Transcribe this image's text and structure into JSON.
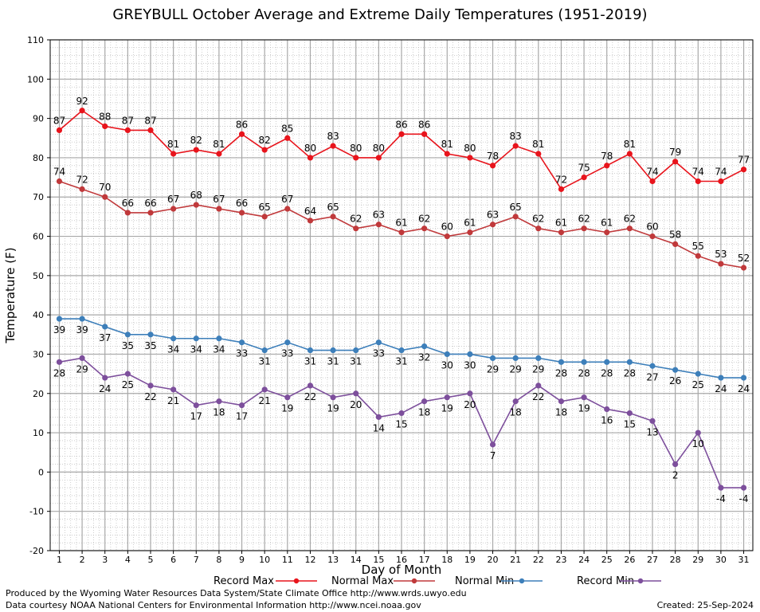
{
  "page": {
    "title": "GREYBULL October Average and Extreme Daily Temperatures (1951-2019)",
    "produced_by": "Produced by the Wyoming Water Resources Data System/State Climate Office http://www.wrds.uwyo.edu",
    "courtesy": "Data courtesy NOAA National Centers for Environmental Information http://www.ncei.noaa.gov",
    "created": "Created:  25-Sep-2024"
  },
  "chart_data": {
    "type": "line",
    "title": "GREYBULL October Average and Extreme Daily Temperatures (1951-2019)",
    "xlabel": "Day of Month",
    "ylabel": "Temperature (F)",
    "xlim": [
      0.6,
      31.4
    ],
    "ylim": [
      -20,
      110
    ],
    "x": [
      1,
      2,
      3,
      4,
      5,
      6,
      7,
      8,
      9,
      10,
      11,
      12,
      13,
      14,
      15,
      16,
      17,
      18,
      19,
      20,
      21,
      22,
      23,
      24,
      25,
      26,
      27,
      28,
      29,
      30,
      31
    ],
    "yticks": [
      -20,
      -10,
      0,
      10,
      20,
      30,
      40,
      50,
      60,
      70,
      80,
      90,
      100,
      110
    ],
    "grid": true,
    "legend_position": "bottom",
    "series": [
      {
        "name": "Record Max",
        "color": "#e8141c",
        "label_position": "above",
        "values": [
          87,
          92,
          88,
          87,
          87,
          81,
          82,
          81,
          86,
          82,
          85,
          80,
          83,
          80,
          80,
          86,
          86,
          81,
          80,
          78,
          83,
          81,
          72,
          75,
          78,
          81,
          74,
          79,
          74,
          74,
          77
        ]
      },
      {
        "name": "Normal Max",
        "color": "#c0393b",
        "label_position": "above",
        "values": [
          74,
          72,
          70,
          66,
          66,
          67,
          68,
          67,
          66,
          65,
          67,
          64,
          65,
          62,
          63,
          61,
          62,
          60,
          61,
          63,
          65,
          62,
          61,
          62,
          61,
          62,
          60,
          58,
          55,
          53,
          52
        ]
      },
      {
        "name": "Normal Min",
        "color": "#3d7fba",
        "label_position": "below",
        "values": [
          39,
          39,
          37,
          35,
          35,
          34,
          34,
          34,
          33,
          31,
          33,
          31,
          31,
          31,
          33,
          31,
          32,
          30,
          30,
          29,
          29,
          29,
          28,
          28,
          28,
          28,
          27,
          26,
          25,
          24,
          24
        ]
      },
      {
        "name": "Record Min",
        "color": "#7d4f9c",
        "label_position": "below",
        "values": [
          28,
          29,
          24,
          25,
          22,
          21,
          17,
          18,
          17,
          21,
          19,
          22,
          19,
          20,
          14,
          15,
          18,
          19,
          20,
          7,
          18,
          22,
          18,
          19,
          16,
          15,
          13,
          2,
          10,
          -4,
          -4
        ]
      }
    ]
  }
}
